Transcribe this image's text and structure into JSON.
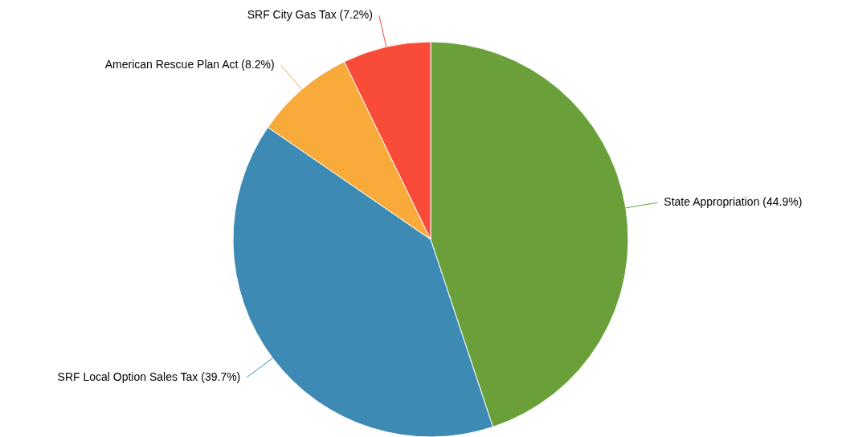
{
  "chart_data": {
    "type": "pie",
    "categories": [
      "State Appropriation",
      "SRF Local Option Sales Tax",
      "American Rescue Plan Act",
      "SRF City Gas Tax"
    ],
    "values": [
      44.9,
      39.7,
      8.2,
      7.2
    ],
    "colors": [
      "#6a9f3a",
      "#3d8ab5",
      "#f8aa3a",
      "#f84b38"
    ],
    "value_labels": [
      "(44.9%)",
      "(39.7%)",
      "(8.2%)",
      "(7.2%)"
    ]
  }
}
